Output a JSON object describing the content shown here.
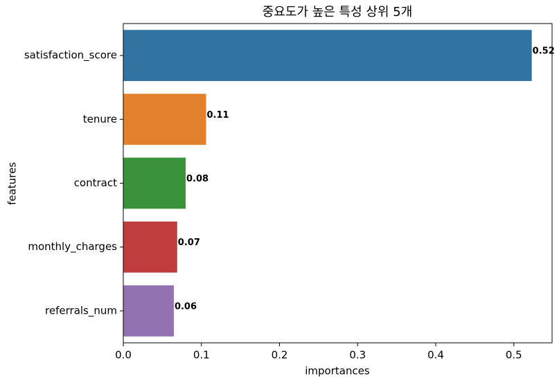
{
  "chart_data": {
    "type": "barh",
    "title": "중요도가 높은 특성 상위 5개",
    "xlabel": "importances",
    "ylabel": "features",
    "categories": [
      "satisfaction_score",
      "tenure",
      "contract",
      "monthly_charges",
      "referrals_num"
    ],
    "values": [
      0.523,
      0.106,
      0.0798,
      0.069,
      0.0647
    ],
    "value_labels": [
      "0.52",
      "0.11",
      "0.08",
      "0.07",
      "0.06"
    ],
    "colors": [
      "#3274a1",
      "#e1812c",
      "#3a923a",
      "#c03d3e",
      "#9372b2"
    ],
    "xlim": [
      0,
      0.549
    ],
    "xticks": [
      {
        "value": 0,
        "label": "0.0"
      },
      {
        "value": 0.1,
        "label": "0.1"
      },
      {
        "value": 0.2,
        "label": "0.2"
      },
      {
        "value": 0.3,
        "label": "0.3"
      },
      {
        "value": 0.4,
        "label": "0.4"
      },
      {
        "value": 0.5,
        "label": "0.5"
      }
    ]
  }
}
